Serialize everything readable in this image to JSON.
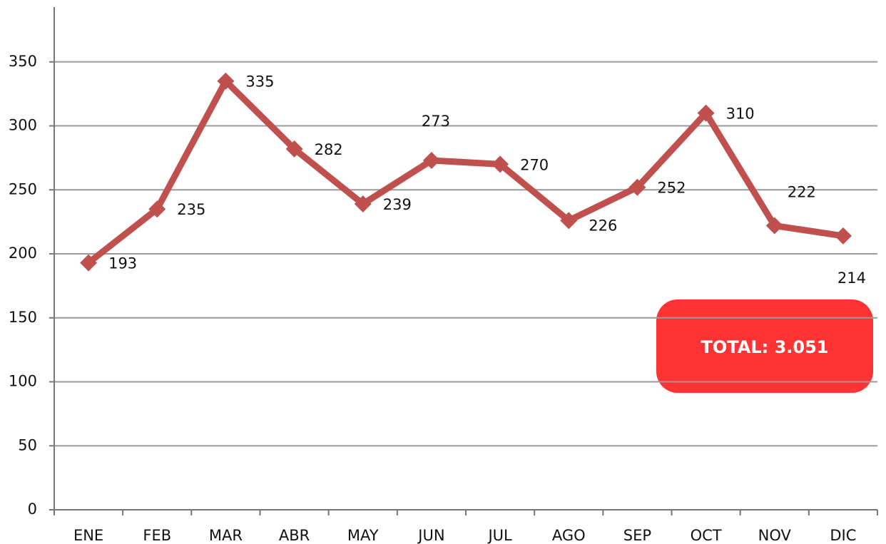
{
  "chart_data": {
    "type": "line",
    "categories": [
      "ENE",
      "FEB",
      "MAR",
      "ABR",
      "MAY",
      "JUN",
      "JUL",
      "AGO",
      "SEP",
      "OCT",
      "NOV",
      "DIC"
    ],
    "values": [
      193,
      235,
      335,
      282,
      239,
      273,
      270,
      226,
      252,
      310,
      222,
      214
    ],
    "color": "#c0504d",
    "ylim": [
      0,
      390
    ],
    "yticks": [
      0,
      50,
      100,
      150,
      200,
      250,
      300,
      350
    ],
    "grid": true,
    "annotation": "TOTAL: 3.051"
  }
}
